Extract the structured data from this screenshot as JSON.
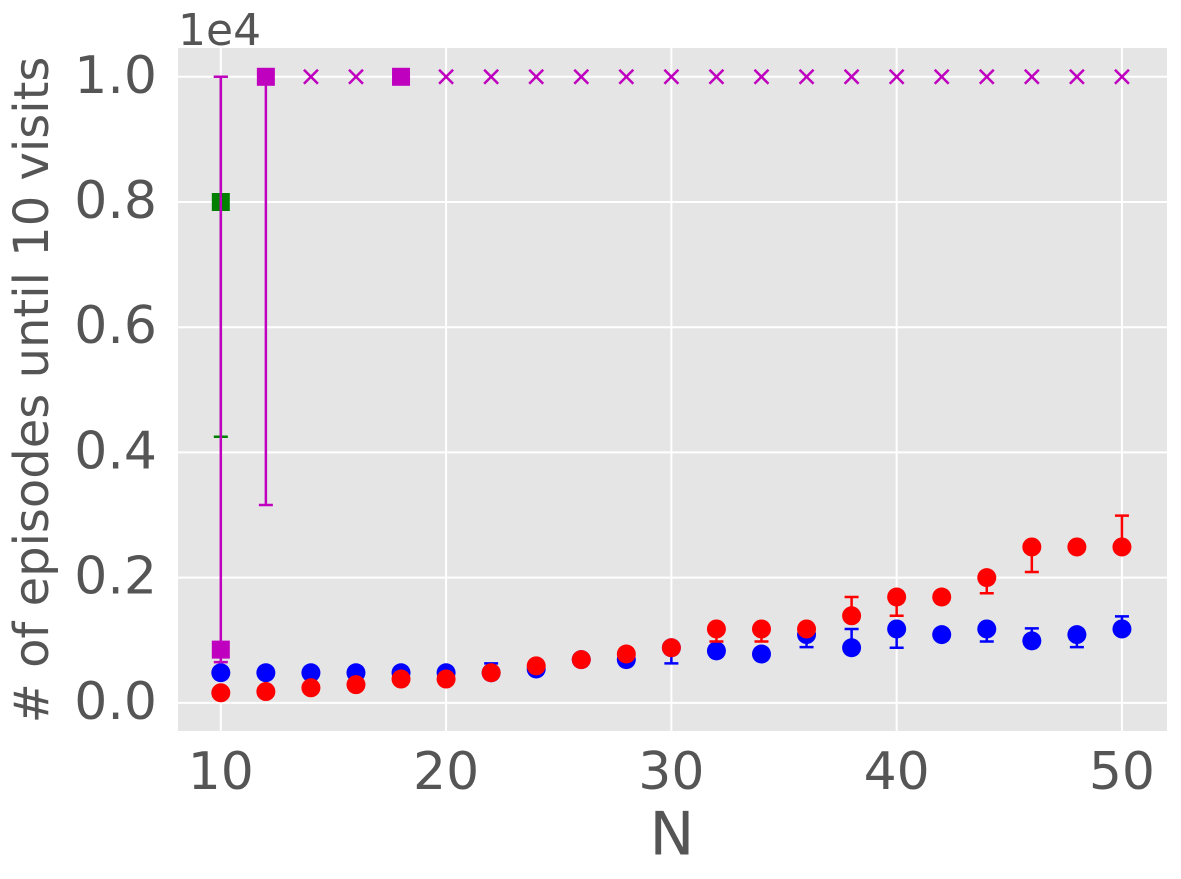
{
  "chart_data": {
    "type": "scatter",
    "x_label": "N",
    "y_label": "# of episodes until 10 visits",
    "y_offset_label": "1e4",
    "xlim": [
      8.1,
      52
    ],
    "ylim": [
      -0.045,
      1.046
    ],
    "xticks": [
      10,
      20,
      30,
      40,
      50
    ],
    "yticks": [
      {
        "value": 0,
        "label": "0.0"
      },
      0.2,
      0.4,
      0.6,
      0.8,
      {
        "value": 1,
        "label": "1.0"
      }
    ],
    "grid": true,
    "series": [
      {
        "marker": "circle",
        "color": "#0000ff",
        "x": [
          10,
          12,
          14,
          16,
          18,
          20,
          22,
          24,
          26,
          28,
          30,
          32,
          34,
          36,
          38,
          40,
          42,
          44,
          46,
          48,
          50
        ],
        "values": [
          0.048,
          0.048,
          0.048,
          0.048,
          0.048,
          0.048,
          0.048,
          0.054,
          0.069,
          0.069,
          0.088,
          0.083,
          0.078,
          0.109,
          0.088,
          0.118,
          0.109,
          0.118,
          0.099,
          0.109,
          0.118
        ],
        "errors": [
          null,
          null,
          null,
          null,
          null,
          null,
          [
            0,
            0.015
          ],
          null,
          null,
          null,
          [
            0.025,
            0
          ],
          null,
          null,
          [
            0.02,
            0
          ],
          [
            0,
            0.03
          ],
          [
            0.03,
            0
          ],
          null,
          [
            0.02,
            0
          ],
          [
            0,
            0.02
          ],
          [
            0.02,
            0
          ],
          [
            0,
            0.02
          ]
        ]
      },
      {
        "marker": "circle",
        "color": "#ff0000",
        "x": [
          10,
          12,
          14,
          16,
          18,
          20,
          22,
          24,
          26,
          28,
          30,
          32,
          34,
          36,
          38,
          40,
          42,
          44,
          46,
          48,
          50
        ],
        "values": [
          0.016,
          0.018,
          0.024,
          0.029,
          0.038,
          0.038,
          0.048,
          0.059,
          0.069,
          0.078,
          0.088,
          0.118,
          0.118,
          0.118,
          0.139,
          0.169,
          0.169,
          0.2,
          0.249,
          0.249,
          0.249
        ],
        "errors": [
          null,
          null,
          null,
          null,
          null,
          null,
          null,
          null,
          null,
          null,
          null,
          [
            0.02,
            0
          ],
          [
            0.02,
            0
          ],
          null,
          [
            0,
            0.03
          ],
          [
            0.03,
            0
          ],
          null,
          [
            0.025,
            0
          ],
          [
            0.04,
            0
          ],
          null,
          [
            0,
            0.05
          ]
        ]
      },
      {
        "marker": "square",
        "color": "#008000",
        "x": [
          10
        ],
        "values": [
          0.8
        ],
        "errors": [
          [
            0.375,
            0.2
          ]
        ]
      },
      {
        "marker": "square",
        "color": "#bf00bf",
        "x": [
          10,
          12,
          18
        ],
        "values": [
          0.085,
          1.0,
          1.0
        ],
        "errors": [
          [
            0.02,
            0.915
          ],
          [
            0.684,
            0
          ],
          null
        ]
      },
      {
        "marker": "x",
        "color": "#bf00bf",
        "x": [
          14,
          16,
          20,
          22,
          24,
          26,
          28,
          30,
          32,
          34,
          36,
          38,
          40,
          42,
          44,
          46,
          48,
          50
        ],
        "values": [
          1,
          1,
          1,
          1,
          1,
          1,
          1,
          1,
          1,
          1,
          1,
          1,
          1,
          1,
          1,
          1,
          1,
          1
        ]
      }
    ]
  }
}
